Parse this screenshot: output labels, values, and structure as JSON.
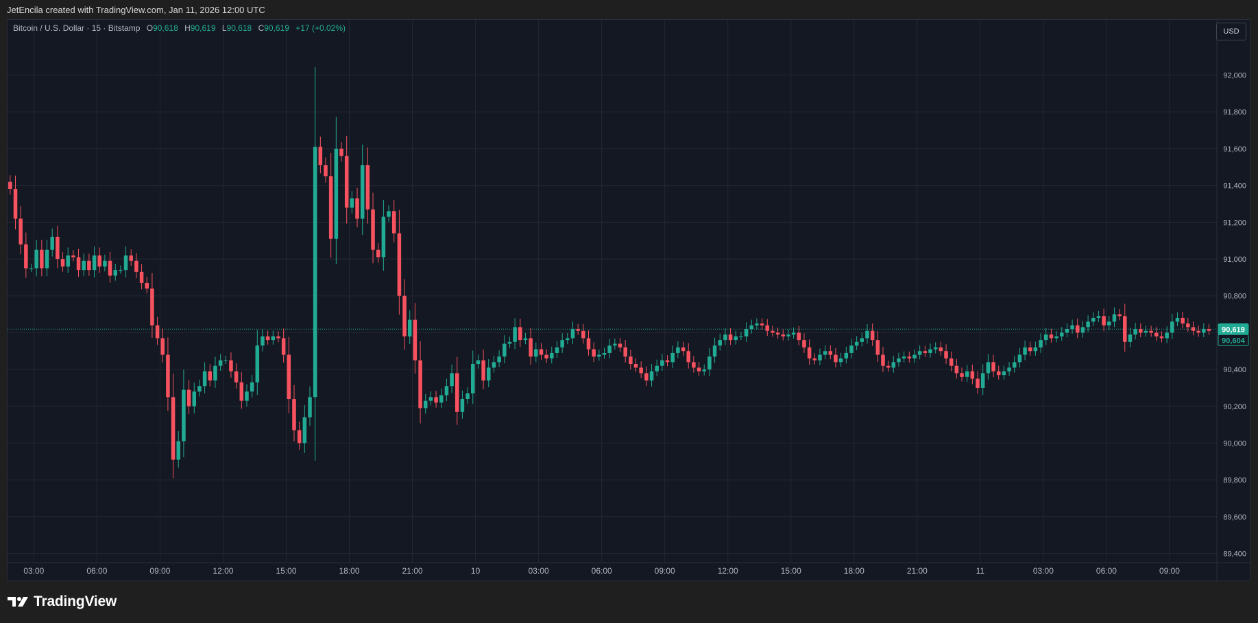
{
  "credit": "JetEncila created with TradingView.com, Jan 11, 2026 12:00 UTC",
  "legend": {
    "symbol": "Bitcoin / U.S. Dollar · 15 · Bitstamp",
    "o_label": "O",
    "o_value": "90,618",
    "h_label": "H",
    "h_value": "90,619",
    "l_label": "L",
    "l_value": "90,618",
    "c_label": "C",
    "c_value": "90,619",
    "change": "+17 (+0.02%)"
  },
  "currency_button": "USD",
  "price_tags": {
    "last": "90,619",
    "secondary": "90,604"
  },
  "brand": "TradingView",
  "colors": {
    "up": "#22ab94",
    "down": "#f7525f",
    "background": "#141822",
    "grid": "#232733",
    "text": "#b2b5be"
  },
  "chart_data": {
    "type": "candlestick",
    "ylim": [
      89350,
      92300
    ],
    "y_ticks": [
      92000,
      91800,
      91600,
      91400,
      91200,
      91000,
      90800,
      90600,
      90400,
      90200,
      90000,
      89800,
      89600,
      89400
    ],
    "y_tick_labels": [
      "92,000",
      "91,800",
      "91,600",
      "91,400",
      "91,200",
      "91,000",
      "90,800",
      "90,600",
      "90,400",
      "90,200",
      "90,000",
      "89,800",
      "89,600",
      "89,400"
    ],
    "x_ticks": [
      {
        "label": "03:00",
        "hours": 3
      },
      {
        "label": "06:00",
        "hours": 6
      },
      {
        "label": "09:00",
        "hours": 9
      },
      {
        "label": "12:00",
        "hours": 12
      },
      {
        "label": "15:00",
        "hours": 15
      },
      {
        "label": "18:00",
        "hours": 18
      },
      {
        "label": "21:00",
        "hours": 21
      },
      {
        "label": "10",
        "hours": 24
      },
      {
        "label": "03:00",
        "hours": 27
      },
      {
        "label": "06:00",
        "hours": 30
      },
      {
        "label": "09:00",
        "hours": 33
      },
      {
        "label": "12:00",
        "hours": 36
      },
      {
        "label": "15:00",
        "hours": 39
      },
      {
        "label": "18:00",
        "hours": 42
      },
      {
        "label": "21:00",
        "hours": 45
      },
      {
        "label": "11",
        "hours": 48
      },
      {
        "label": "03:00",
        "hours": 51
      },
      {
        "label": "06:00",
        "hours": 54
      },
      {
        "label": "09:00",
        "hours": 57
      }
    ],
    "last_price": 90619,
    "x_unit": "hours since Jan 9 00:00",
    "close_prices": [
      91380,
      91220,
      91080,
      90950,
      90950,
      91050,
      90950,
      91050,
      91120,
      91000,
      90960,
      91020,
      91010,
      90940,
      90990,
      90940,
      91020,
      90960,
      90990,
      90910,
      90940,
      90940,
      91020,
      90990,
      90930,
      90870,
      90840,
      90640,
      90570,
      90480,
      90250,
      89910,
      90010,
      90290,
      90200,
      90280,
      90310,
      90390,
      90340,
      90420,
      90450,
      90450,
      90390,
      90330,
      90230,
      90280,
      90330,
      90530,
      90580,
      90560,
      90580,
      90570,
      90480,
      90240,
      90070,
      90000,
      90140,
      90250,
      91610,
      91510,
      91450,
      91110,
      91600,
      91560,
      91280,
      91330,
      91220,
      91510,
      91270,
      91050,
      91010,
      91230,
      91260,
      91140,
      90800,
      90580,
      90670,
      90450,
      90190,
      90230,
      90250,
      90220,
      90260,
      90310,
      90380,
      90170,
      90240,
      90270,
      90430,
      90450,
      90340,
      90410,
      90440,
      90470,
      90540,
      90550,
      90630,
      90560,
      90570,
      90470,
      90510,
      90480,
      90460,
      90490,
      90520,
      90560,
      90570,
      90620,
      90610,
      90570,
      90510,
      90470,
      90480,
      90490,
      90530,
      90540,
      90520,
      90470,
      90430,
      90410,
      90380,
      90340,
      90390,
      90420,
      90450,
      90440,
      90490,
      90520,
      90500,
      90440,
      90410,
      90390,
      90400,
      90470,
      90530,
      90560,
      90590,
      90560,
      90580,
      90580,
      90620,
      90640,
      90650,
      90640,
      90610,
      90600,
      90590,
      90580,
      90590,
      90600,
      90560,
      90520,
      90460,
      90450,
      90480,
      90500,
      90480,
      90440,
      90460,
      90490,
      90530,
      90550,
      90570,
      90610,
      90560,
      90480,
      90420,
      90410,
      90440,
      90460,
      90470,
      90460,
      90480,
      90500,
      90490,
      90510,
      90520,
      90500,
      90460,
      90420,
      90380,
      90360,
      90390,
      90350,
      90300,
      90380,
      90440,
      90390,
      90370,
      90390,
      90410,
      90440,
      90480,
      90520,
      90500,
      90520,
      90560,
      90590,
      90570,
      90580,
      90600,
      90620,
      90640,
      90600,
      90630,
      90660,
      90680,
      90690,
      90640,
      90660,
      90700,
      90690,
      90550,
      90590,
      90620,
      90600,
      90610,
      90600,
      90580,
      90570,
      90600,
      90660,
      90680,
      90650,
      90630,
      90610,
      90600,
      90620,
      90610
    ]
  }
}
